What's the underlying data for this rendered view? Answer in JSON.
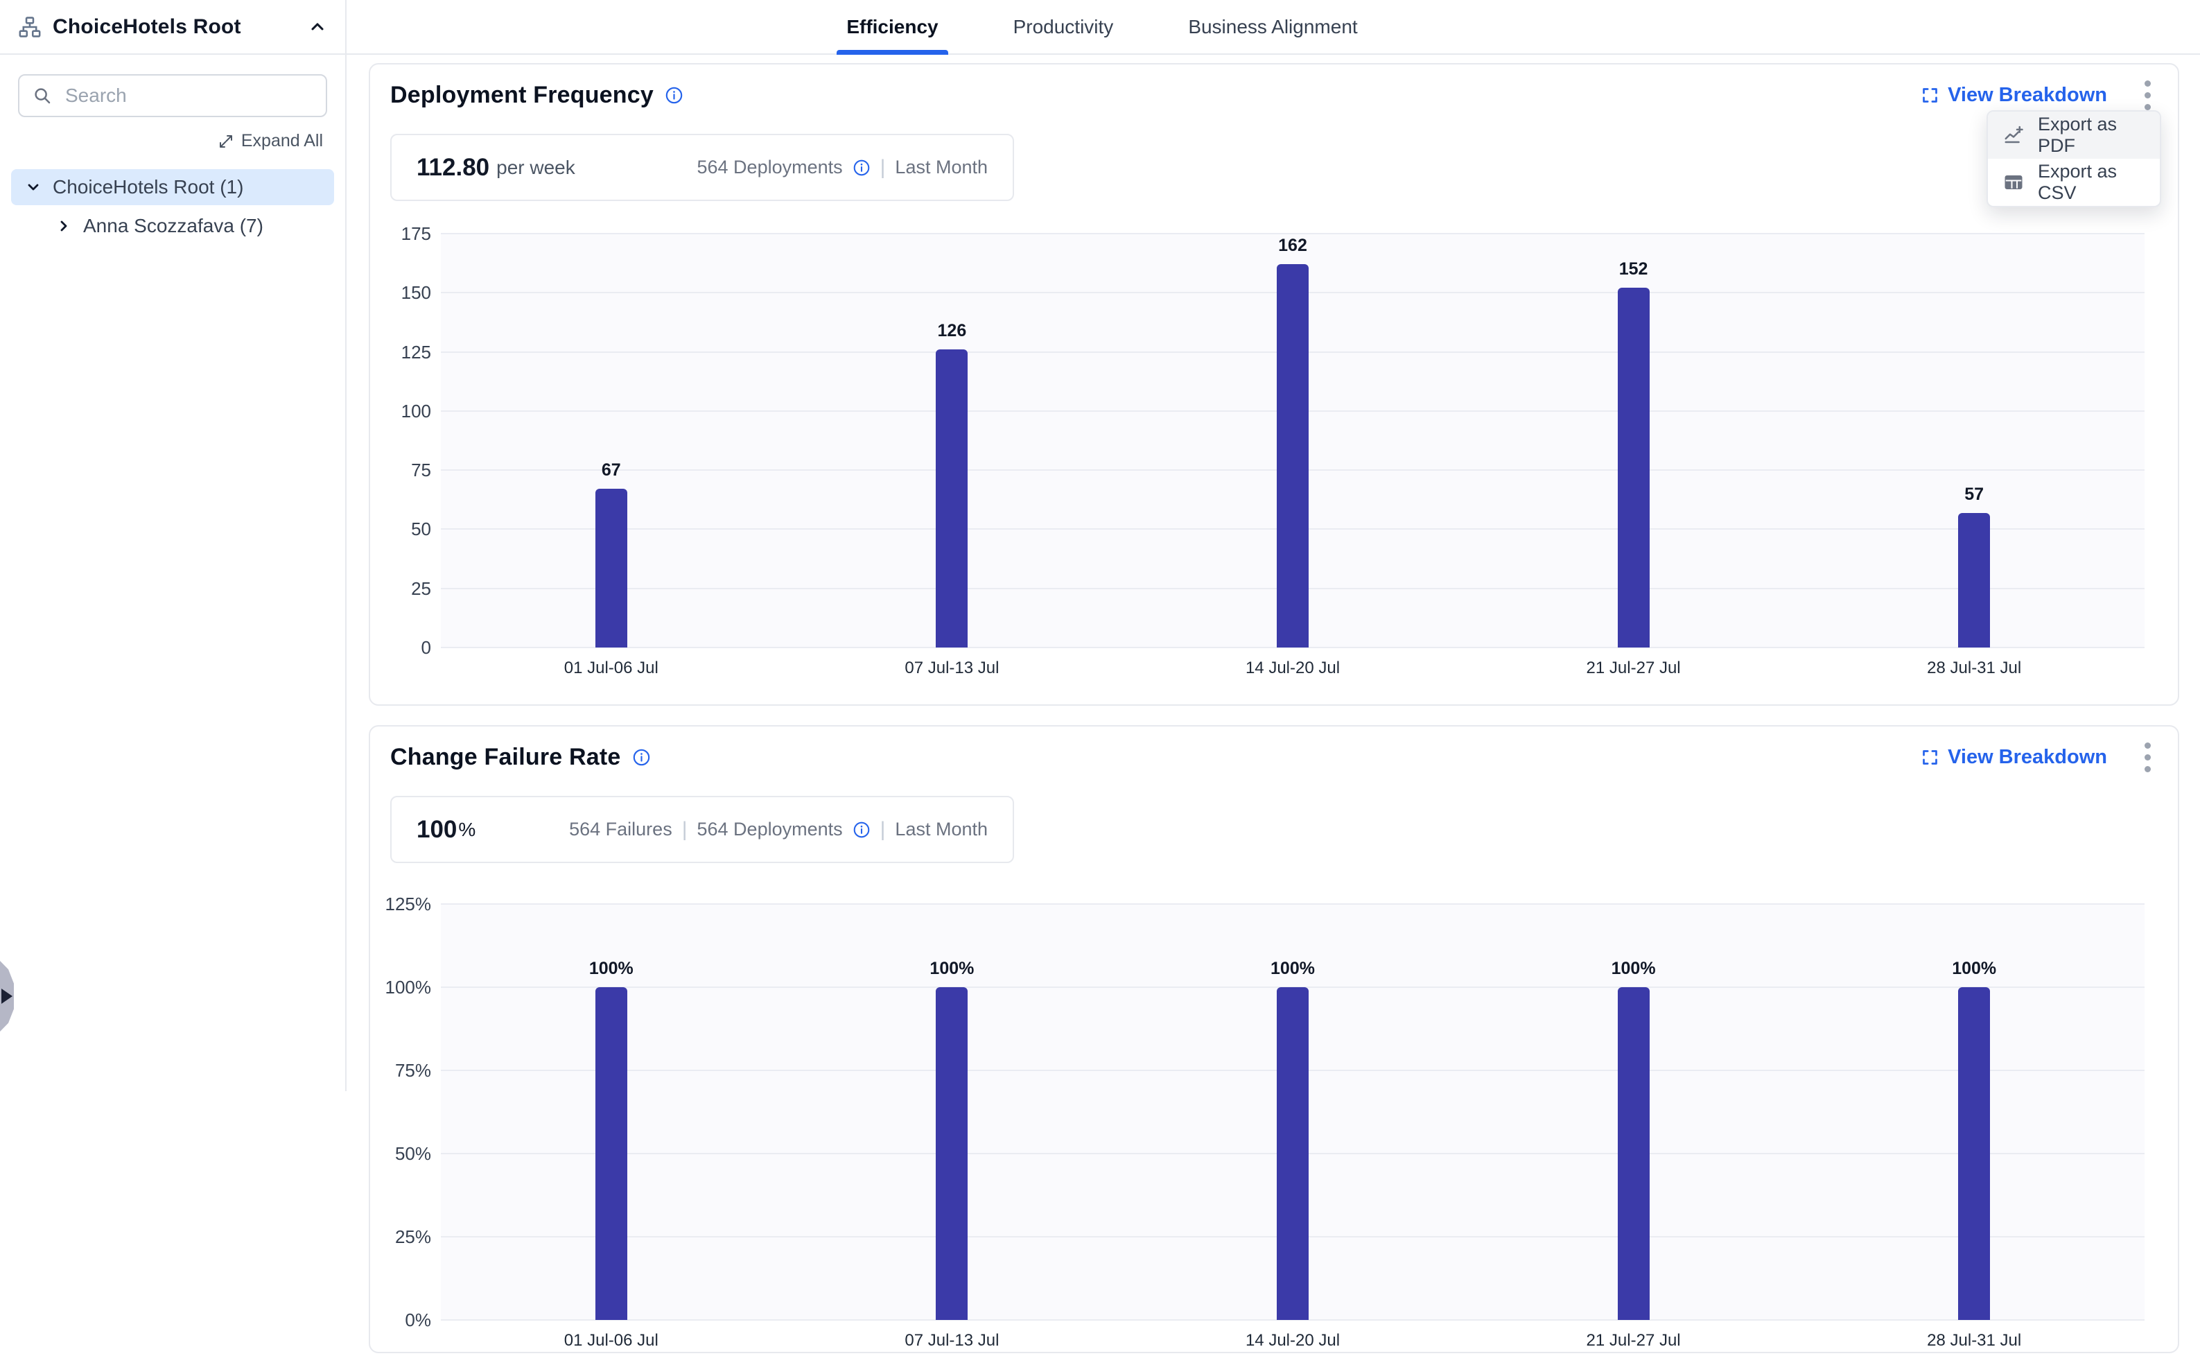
{
  "colors": {
    "accent_blue": "#2563eb",
    "bar_indigo": "#3b3aa8",
    "selected_tree_bg": "#dbeafd",
    "plot_bg": "#fafafd"
  },
  "sidebar": {
    "title": "ChoiceHotels Root",
    "search_placeholder": "Search",
    "expand_all_label": "Expand All",
    "tree": [
      {
        "label": "ChoiceHotels Root (1)",
        "state": "expanded",
        "selected": true,
        "level": 0
      },
      {
        "label": "Anna Scozzafava (7)",
        "state": "collapsed",
        "selected": false,
        "level": 1
      }
    ]
  },
  "tabs": [
    {
      "label": "Efficiency",
      "active": true
    },
    {
      "label": "Productivity",
      "active": false
    },
    {
      "label": "Business Alignment",
      "active": false
    }
  ],
  "export_menu": {
    "items": [
      {
        "label": "Export as PDF",
        "icon": "line-chart-plus-icon",
        "hovered": true
      },
      {
        "label": "Export as CSV",
        "icon": "table-icon",
        "hovered": false
      }
    ]
  },
  "deployment_frequency": {
    "title": "Deployment Frequency",
    "view_breakdown_label": "View Breakdown",
    "stat": {
      "value": "112.80",
      "unit": "per week",
      "deployments": "564 Deployments",
      "period": "Last Month"
    },
    "chart_data": {
      "type": "bar",
      "categories": [
        "01 Jul-06 Jul",
        "07 Jul-13 Jul",
        "14 Jul-20 Jul",
        "21 Jul-27 Jul",
        "28 Jul-31 Jul"
      ],
      "values": [
        67,
        126,
        162,
        152,
        57
      ],
      "ylim": [
        0,
        175
      ],
      "yticks": [
        175,
        150,
        125,
        100,
        75,
        50,
        25,
        0
      ],
      "ytick_labels": [
        "175",
        "150",
        "125",
        "100",
        "75",
        "50",
        "25",
        "0"
      ],
      "bar_color": "#3b3aa8",
      "grid": true,
      "legend": "none",
      "title": "Deployment Frequency",
      "xlabel": "",
      "ylabel": ""
    }
  },
  "change_failure_rate": {
    "title": "Change Failure Rate",
    "view_breakdown_label": "View Breakdown",
    "stat": {
      "value": "100",
      "unit": "%",
      "failures": "564 Failures",
      "deployments": "564 Deployments",
      "period": "Last Month"
    },
    "chart_data": {
      "type": "bar",
      "categories": [
        "01 Jul-06 Jul",
        "07 Jul-13 Jul",
        "14 Jul-20 Jul",
        "21 Jul-27 Jul",
        "28 Jul-31 Jul"
      ],
      "values": [
        100,
        100,
        100,
        100,
        100
      ],
      "value_labels": [
        "100%",
        "100%",
        "100%",
        "100%",
        "100%"
      ],
      "ylim": [
        0,
        125
      ],
      "yticks": [
        125,
        100,
        75,
        50,
        25,
        0
      ],
      "ytick_labels": [
        "125%",
        "100%",
        "75%",
        "50%",
        "25%",
        "0%"
      ],
      "bar_color": "#3b3aa8",
      "grid": true,
      "legend": "none",
      "title": "Change Failure Rate",
      "xlabel": "",
      "ylabel": ""
    }
  }
}
